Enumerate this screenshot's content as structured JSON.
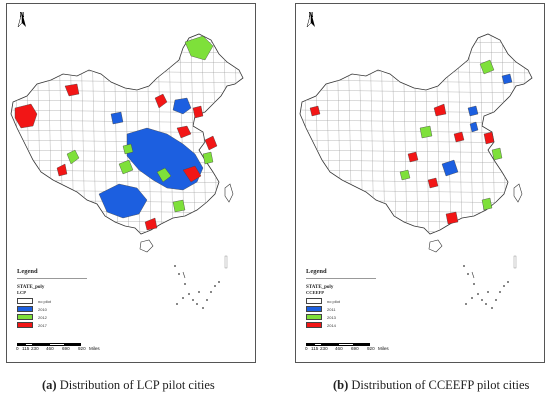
{
  "colors": {
    "none": "#ffffff",
    "blue": "#1c5fe0",
    "green": "#7ee03a",
    "red": "#f21616",
    "outline": "#555555"
  },
  "panels": [
    {
      "north_label": "N",
      "legend": {
        "title": "Legend",
        "layer": "STATE_poly",
        "field": "LCP",
        "items": [
          {
            "label": "no pilot",
            "color": "#ffffff"
          },
          {
            "label": "2010",
            "color": "#1c5fe0"
          },
          {
            "label": "2012",
            "color": "#7ee03a"
          },
          {
            "label": "2017",
            "color": "#f21616"
          }
        ]
      },
      "scale": {
        "ticks": [
          "0",
          "115",
          "230",
          "460",
          "690",
          "920"
        ],
        "unit": "Miles"
      },
      "caption": {
        "tag": "(a)",
        "text": " Distribution of LCP pilot cities"
      }
    },
    {
      "north_label": "N",
      "legend": {
        "title": "Legend",
        "layer": "STATE_poly",
        "field": "CCEEFP",
        "items": [
          {
            "label": "no pilot",
            "color": "#ffffff"
          },
          {
            "label": "2011",
            "color": "#1c5fe0"
          },
          {
            "label": "2013",
            "color": "#7ee03a"
          },
          {
            "label": "2014",
            "color": "#f21616"
          }
        ]
      },
      "scale": {
        "ticks": [
          "0",
          "115",
          "230",
          "460",
          "690",
          "920"
        ],
        "unit": "Miles"
      },
      "caption": {
        "tag": "(b)",
        "text": " Distribution of CCEEFP pilot cities"
      }
    }
  ]
}
